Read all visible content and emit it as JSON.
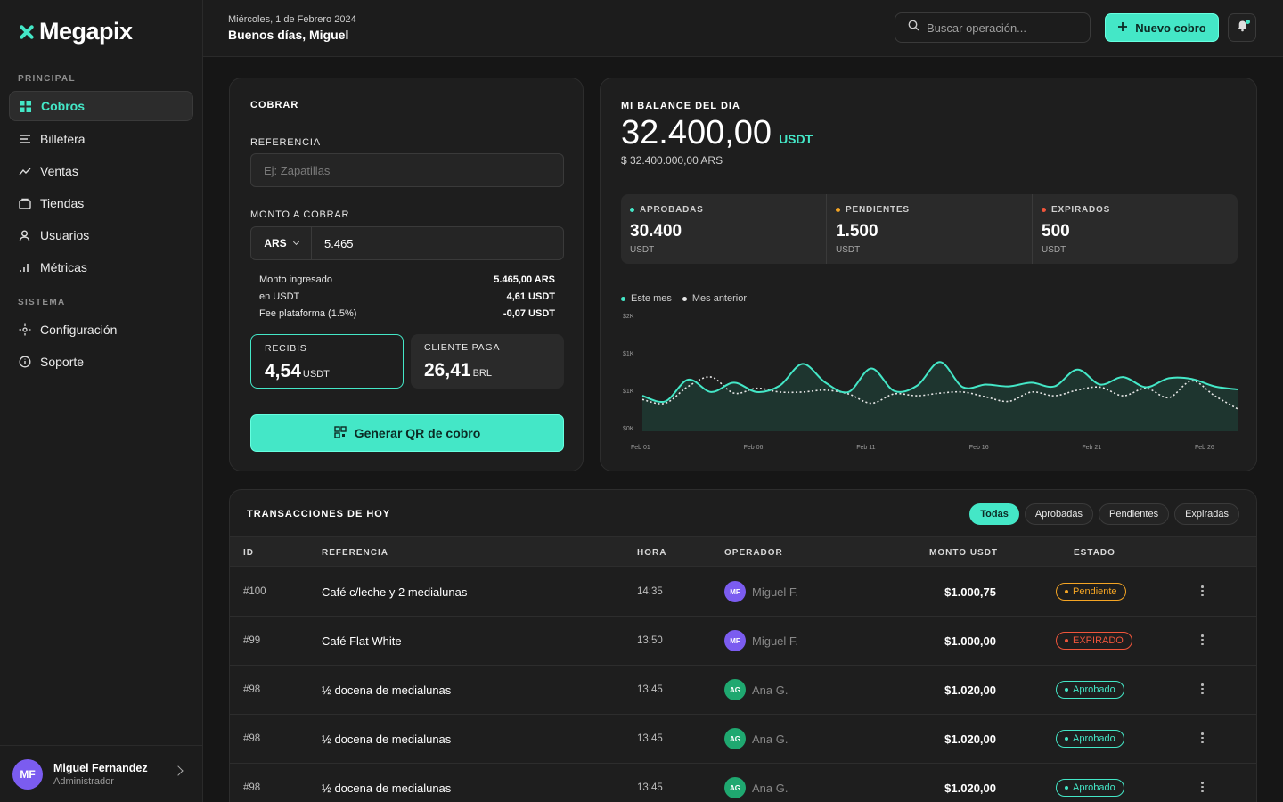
{
  "brand": {
    "name": "Megapix",
    "accent": "#44e7c7"
  },
  "sidebar": {
    "section_main": "PRINCIPAL",
    "section_system": "SISTEMA",
    "items": [
      {
        "label": "Cobros",
        "icon": "grid-icon",
        "active": true
      },
      {
        "label": "Billetera",
        "icon": "list-icon"
      },
      {
        "label": "Ventas",
        "icon": "trend-icon"
      },
      {
        "label": "Tiendas",
        "icon": "store-icon"
      },
      {
        "label": "Usuarios",
        "icon": "user-icon"
      },
      {
        "label": "Métricas",
        "icon": "bars-icon"
      }
    ],
    "system_items": [
      {
        "label": "Configuración",
        "icon": "settings-icon"
      },
      {
        "label": "Soporte",
        "icon": "info-icon"
      }
    ],
    "user": {
      "initials": "MF",
      "name": "Miguel Fernandez",
      "role": "Administrador"
    }
  },
  "header": {
    "date": "Miércoles, 1 de Febrero 2024",
    "greeting": "Buenos días, Miguel",
    "search_placeholder": "Buscar operación...",
    "new_button": "Nuevo cobro"
  },
  "cobrar": {
    "title": "COBRAR",
    "ref_label": "REFERENCIA",
    "ref_placeholder": "Ej: Zapatillas",
    "amount_label": "MONTO A COBRAR",
    "currency": "ARS",
    "amount": "5.465",
    "summary": [
      {
        "label": "Monto ingresado",
        "value": "5.465,00 ARS"
      },
      {
        "label": "en USDT",
        "value": "4,61 USDT"
      },
      {
        "label": "Fee plataforma (1.5%)",
        "value": "-0,07 USDT"
      }
    ],
    "recibis": {
      "label": "RECIBIS",
      "value": "4,54",
      "unit": "USDT"
    },
    "cliente": {
      "label": "CLIENTE PAGA",
      "value": "26,41",
      "unit": "BRL"
    },
    "qr_button": "Generar QR de cobro"
  },
  "balance": {
    "title": "MI BALANCE DEL DIA",
    "amount": "32.400,00",
    "unit": "USDT",
    "sub": "$ 32.400.000,00 ARS",
    "stats": [
      {
        "label": "APROBADAS",
        "value": "30.400",
        "unit": "USDT",
        "color": "#44e7c7"
      },
      {
        "label": "PENDIENTES",
        "value": "1.500",
        "unit": "USDT",
        "color": "#f5a524"
      },
      {
        "label": "EXPIRADOS",
        "value": "500",
        "unit": "USDT",
        "color": "#f0553b"
      }
    ]
  },
  "chart_data": {
    "type": "line",
    "series": [
      {
        "name": "Este mes",
        "color": "#44e7c7",
        "values": [
          0.95,
          0.8,
          1.38,
          1.05,
          1.3,
          1.05,
          1.22,
          1.8,
          1.3,
          1.05,
          1.68,
          1.08,
          1.22,
          1.85,
          1.18,
          1.25,
          1.2,
          1.3,
          1.2,
          1.65,
          1.25,
          1.45,
          1.18,
          1.42,
          1.4,
          1.2,
          1.12
        ]
      },
      {
        "name": "Mes anterior",
        "color": "#e6e6e6",
        "values": [
          0.85,
          0.75,
          1.2,
          1.45,
          1.02,
          1.15,
          1.05,
          1.05,
          1.1,
          1.0,
          0.75,
          1.0,
          0.95,
          1.02,
          1.05,
          0.92,
          0.8,
          1.05,
          0.95,
          1.1,
          1.18,
          0.95,
          1.15,
          0.9,
          1.35,
          0.95,
          0.6
        ]
      }
    ],
    "y_ticks": [
      "$2K",
      "$1K",
      "$1K",
      "$0K"
    ],
    "x_ticks": [
      "Feb 01",
      "Feb 06",
      "Feb 11",
      "Feb 16",
      "Feb 21",
      "Feb 26"
    ],
    "ylim": [
      0,
      3
    ],
    "legend": "top-left"
  },
  "transactions": {
    "title": "TRANSACCIONES DE HOY",
    "filters": [
      "Todas",
      "Aprobadas",
      "Pendientes",
      "Expiradas"
    ],
    "columns": [
      "ID",
      "REFERENCIA",
      "HORA",
      "OPERADOR",
      "MONTO USDT",
      "ESTADO"
    ],
    "rows": [
      {
        "id": "#100",
        "ref": "Café c/leche y 2 medialunas",
        "time": "14:35",
        "op_initials": "MF",
        "op_name": "Miguel F.",
        "op_color": "#7b5cf0",
        "amount": "$1.000,75",
        "status": "Pendiente",
        "status_color": "#f5a524"
      },
      {
        "id": "#99",
        "ref": "Café Flat White",
        "time": "13:50",
        "op_initials": "MF",
        "op_name": "Miguel F.",
        "op_color": "#7b5cf0",
        "amount": "$1.000,00",
        "status": "EXPIRADO",
        "status_color": "#f0553b"
      },
      {
        "id": "#98",
        "ref": "½ docena de medialunas",
        "time": "13:45",
        "op_initials": "AG",
        "op_name": "Ana G.",
        "op_color": "#1fa870",
        "amount": "$1.020,00",
        "status": "Aprobado",
        "status_color": "#44e7c7"
      },
      {
        "id": "#98",
        "ref": "½ docena de medialunas",
        "time": "13:45",
        "op_initials": "AG",
        "op_name": "Ana G.",
        "op_color": "#1fa870",
        "amount": "$1.020,00",
        "status": "Aprobado",
        "status_color": "#44e7c7"
      },
      {
        "id": "#98",
        "ref": "½ docena de medialunas",
        "time": "13:45",
        "op_initials": "AG",
        "op_name": "Ana G.",
        "op_color": "#1fa870",
        "amount": "$1.020,00",
        "status": "Aprobado",
        "status_color": "#44e7c7"
      }
    ]
  }
}
